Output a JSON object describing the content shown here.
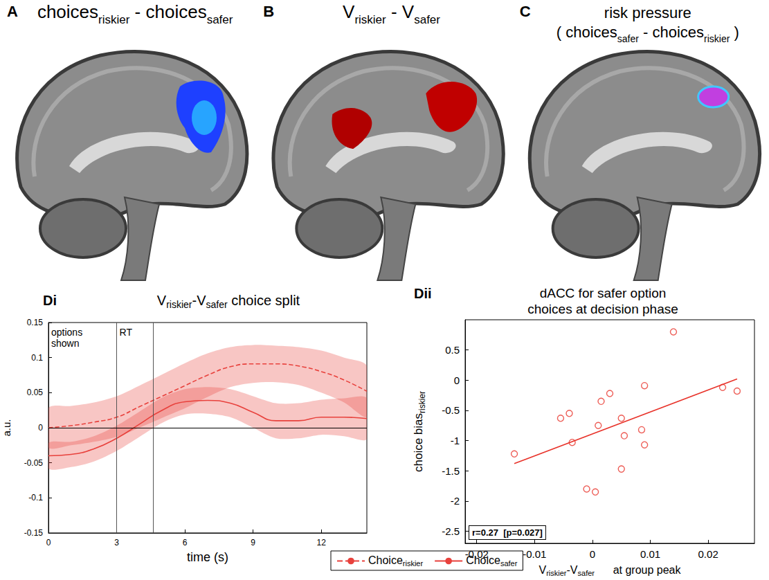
{
  "panels": [
    {
      "letter": "A",
      "title": [
        [
          {
            "text": "choices"
          },
          {
            "text": "riskier",
            "sub": true
          },
          {
            "text": " - choices"
          },
          {
            "text": "safer",
            "sub": true
          }
        ]
      ]
    },
    {
      "letter": "B",
      "title": [
        [
          {
            "text": "V"
          },
          {
            "text": "riskier",
            "sub": true
          },
          {
            "text": " - V"
          },
          {
            "text": "safer",
            "sub": true
          }
        ]
      ]
    },
    {
      "letter": "C",
      "title": [
        [
          {
            "text": "risk pressure"
          }
        ],
        [
          {
            "text": "( choices"
          },
          {
            "text": "safer",
            "sub": true
          },
          {
            "text": " - choices"
          },
          {
            "text": "riskier",
            "sub": true
          },
          {
            "text": " )"
          }
        ]
      ]
    }
  ],
  "chart_data": [
    {
      "panel": "Di",
      "type": "line",
      "title": [
        {
          "text": "V"
        },
        {
          "text": "riskier",
          "sub": true
        },
        {
          "text": "-V"
        },
        {
          "text": "safer",
          "sub": true
        },
        {
          "text": " choice split"
        }
      ],
      "xlabel": "time (s)",
      "ylabel": "a.u.",
      "xlim": [
        0,
        14
      ],
      "xticks": [
        0,
        3,
        6,
        9,
        12
      ],
      "ylim": [
        -0.15,
        0.15
      ],
      "yticks": [
        -0.15,
        -0.1,
        -0.05,
        0,
        0.05,
        0.1,
        0.15
      ],
      "grid": false,
      "legend": "bottom",
      "vlines": [
        {
          "x": 3,
          "label": "options shown"
        },
        {
          "x": 4.6,
          "label": "RT"
        }
      ],
      "hlines": [
        0
      ],
      "x": [
        0,
        1,
        2,
        3,
        4,
        5,
        6,
        7,
        8,
        9,
        10,
        11,
        12,
        13,
        14
      ],
      "series": [
        {
          "name": [
            {
              "text": "Choice"
            },
            {
              "text": "riskier",
              "sub": true
            }
          ],
          "color": "#e8413c",
          "line_style": "dashed",
          "values": [
            0,
            0.003,
            0.008,
            0.015,
            0.03,
            0.045,
            0.06,
            0.075,
            0.087,
            0.091,
            0.091,
            0.088,
            0.08,
            0.068,
            0.052
          ],
          "lower": [
            -0.028,
            -0.025,
            -0.02,
            -0.013,
            0.0,
            0.014,
            0.028,
            0.044,
            0.058,
            0.064,
            0.065,
            0.061,
            0.05,
            0.036,
            0.016
          ],
          "upper": [
            0.028,
            0.031,
            0.036,
            0.045,
            0.06,
            0.076,
            0.092,
            0.106,
            0.115,
            0.118,
            0.117,
            0.115,
            0.11,
            0.1,
            0.088
          ]
        },
        {
          "name": [
            {
              "text": "Choice"
            },
            {
              "text": "safer",
              "sub": true
            }
          ],
          "color": "#e8413c",
          "line_style": "solid",
          "values": [
            -0.04,
            -0.038,
            -0.03,
            -0.015,
            0.005,
            0.025,
            0.037,
            0.039,
            0.035,
            0.022,
            0.01,
            0.01,
            0.015,
            0.015,
            0.013
          ],
          "lower": [
            -0.058,
            -0.056,
            -0.048,
            -0.033,
            -0.013,
            0.007,
            0.019,
            0.02,
            0.015,
            0.0,
            -0.015,
            -0.015,
            -0.01,
            -0.012,
            -0.016
          ],
          "upper": [
            -0.022,
            -0.02,
            -0.012,
            0.003,
            0.023,
            0.043,
            0.055,
            0.058,
            0.055,
            0.045,
            0.035,
            0.035,
            0.04,
            0.042,
            0.042
          ]
        }
      ]
    },
    {
      "panel": "Dii",
      "type": "scatter",
      "title": "dACC for safer option choices at decision phase",
      "xlabel": [
        {
          "text": "V"
        },
        {
          "text": "riskier",
          "sub": true
        },
        {
          "text": "-V"
        },
        {
          "text": "safer",
          "sub": true
        },
        {
          "text": "      at group peak"
        }
      ],
      "ylabel": [
        {
          "text": "choice bias"
        },
        {
          "text": "riskier",
          "sub": true
        }
      ],
      "xlim": [
        -0.022,
        0.028
      ],
      "xticks": [
        -0.02,
        -0.01,
        0,
        0.01,
        0.02
      ],
      "ylim": [
        -2.7,
        1
      ],
      "yticks": [
        -2.5,
        -2,
        -1.5,
        -1,
        -0.5,
        0,
        0.5
      ],
      "grid": false,
      "annotation": "r=0.27  [p=0.027]",
      "series": [
        {
          "type": "scatter",
          "marker": "circle",
          "color": "#e8332a",
          "x": [
            -0.0135,
            -0.0055,
            -0.004,
            -0.0035,
            -0.001,
            0.0005,
            0.001,
            0.0015,
            0.003,
            0.005,
            0.0055,
            0.005,
            0.0085,
            0.009,
            0.009,
            0.014,
            0.0225,
            0.025
          ],
          "values": [
            -1.22,
            -0.63,
            -0.55,
            -1.03,
            -1.8,
            -1.85,
            -0.75,
            -0.35,
            -0.22,
            -0.63,
            -0.92,
            -1.47,
            -0.82,
            -1.07,
            -0.09,
            0.8,
            -0.12,
            -0.18
          ]
        },
        {
          "type": "line",
          "line_style": "solid",
          "color": "#e8332a",
          "x": [
            -0.0135,
            0.025
          ],
          "values": [
            -1.38,
            0.02
          ]
        }
      ]
    }
  ]
}
